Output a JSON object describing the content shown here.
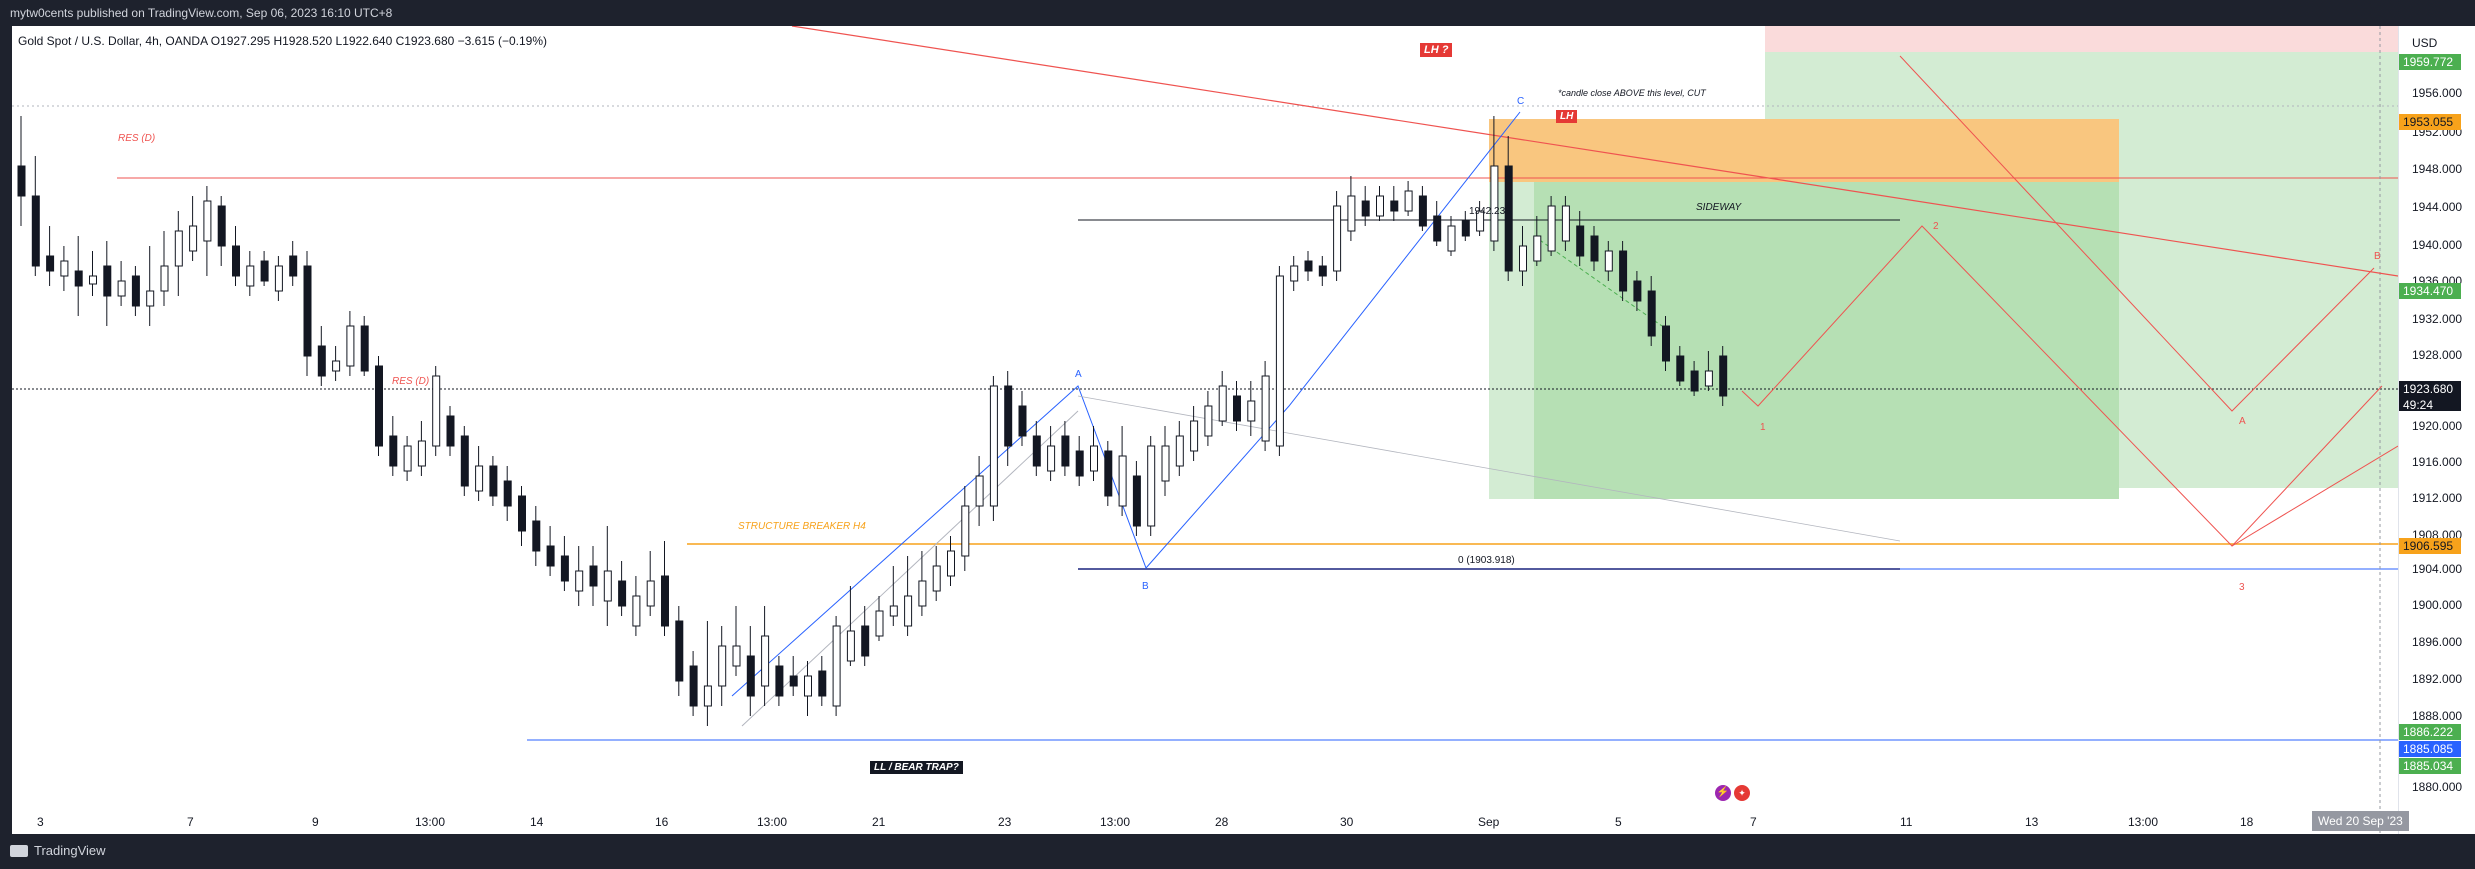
{
  "header": {
    "published_text": "mytw0cents published on TradingView.com, Sep 06, 2023 16:10 UTC+8"
  },
  "legend": {
    "text": "Gold Spot / U.S. Dollar, 4h, OANDA  O1927.295  H1928.520  L1922.640  C1923.680  −3.615 (−0.19%)"
  },
  "price_axis": {
    "currency": "USD",
    "ticks": [
      "1956.000",
      "1952.000",
      "1948.000",
      "1944.000",
      "1940.000",
      "1936.000",
      "1932.000",
      "1928.000",
      "1920.000",
      "1916.000",
      "1912.000",
      "1908.000",
      "1904.000",
      "1900.000",
      "1896.000",
      "1892.000",
      "1888.000",
      "1880.000"
    ],
    "labels": {
      "top_green": "1959.772",
      "orange": "1953.055",
      "green_mid": "1934.470",
      "current_price": "1923.680",
      "countdown": "49:24",
      "orange_low": "1906.595",
      "green_bottom": "1886.222",
      "blue": "1885.085",
      "green_low": "1885.034"
    },
    "colors": {
      "orange": "#f7a21b",
      "green": "#4caf50",
      "blue": "#2962ff",
      "black": "#131722"
    }
  },
  "time_axis": {
    "ticks": [
      "3",
      "7",
      "9",
      "13:00",
      "14",
      "16",
      "13:00",
      "21",
      "23",
      "13:00",
      "28",
      "30",
      "Sep",
      "5",
      "7",
      "11",
      "13",
      "13:00",
      "18"
    ],
    "crosshair_date": "Wed 20 Sep '23"
  },
  "annotations": {
    "res_d_top": "RES (D)",
    "res_d_mid": "RES (D)",
    "structure_breaker": "STRUCTURE BREAKER H4",
    "bear_trap": "LL / BEAR TRAP?",
    "lh_badge_top": "LH ?",
    "lh_badge": "LH",
    "candle_note": "*candle close ABOVE this level, CUT",
    "sideway": "SIDEWAY",
    "fib_1942": "1942.233",
    "fib_0": "0 (1903.918)",
    "wave_A_left": "A",
    "wave_B_left": "B",
    "wave_C": "C",
    "proj_1": "1",
    "proj_2": "2",
    "proj_3": "3",
    "proj_A": "A",
    "proj_B": "B"
  },
  "footer": {
    "brand": "TradingView"
  }
}
